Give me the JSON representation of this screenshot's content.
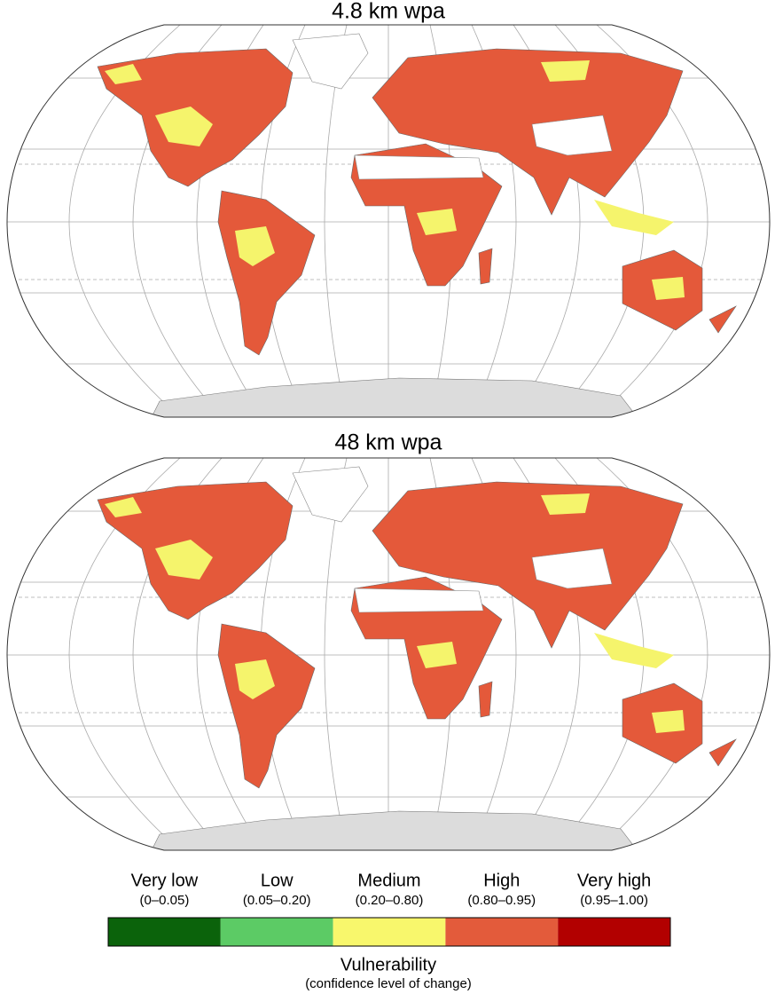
{
  "panels": [
    {
      "title": "4.8 km wpa"
    },
    {
      "title": "48 km wpa"
    }
  ],
  "legend": {
    "items": [
      {
        "label": "Very low",
        "range": "(0–0.05)",
        "color": "#0b630b"
      },
      {
        "label": "Low",
        "range": "(0.05–0.20)",
        "color": "#5ccb65"
      },
      {
        "label": "Medium",
        "range": "(0.20–0.80)",
        "color": "#f8f76c"
      },
      {
        "label": "High",
        "range": "(0.80–0.95)",
        "color": "#e35b3b"
      },
      {
        "label": "Very high",
        "range": "(0.95–1.00)",
        "color": "#b20000"
      }
    ],
    "title": "Vulnerability",
    "subtitle": "(confidence level of change)"
  }
}
